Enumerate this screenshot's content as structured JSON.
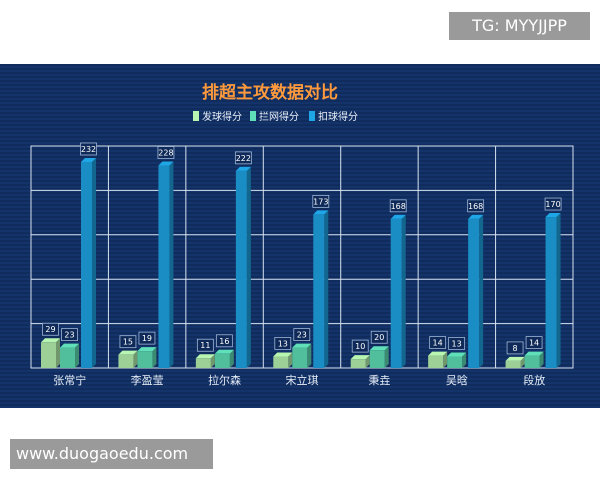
{
  "watermark_top": "TG: MYYJJPP",
  "watermark_bottom": "www.duogaoedu.com",
  "chart_data": {
    "type": "bar",
    "title": "排超主攻数据对比",
    "categories": [
      "张常宁",
      "李盈莹",
      "拉尔森",
      "宋立琪",
      "秉垚",
      "吴晗",
      "段放"
    ],
    "series": [
      {
        "name": "发球得分",
        "values": [
          29,
          15,
          11,
          13,
          10,
          14,
          8
        ],
        "color": "#b7f5b0"
      },
      {
        "name": "拦网得分",
        "values": [
          23,
          19,
          16,
          23,
          20,
          13,
          14
        ],
        "color": "#5fe0b8"
      },
      {
        "name": "扣球得分",
        "values": [
          232,
          228,
          222,
          173,
          168,
          168,
          170
        ],
        "color": "#1fa6e6"
      }
    ],
    "ylim": [
      0,
      250
    ],
    "grid": true,
    "legend": "top"
  }
}
